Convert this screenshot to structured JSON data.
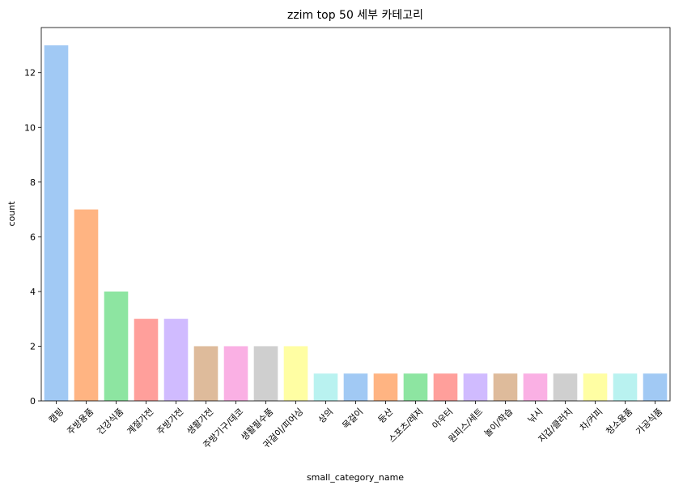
{
  "chart_data": {
    "type": "bar",
    "title": "zzim top 50 세부 카테고리",
    "xlabel": "small_category_name",
    "ylabel": "count",
    "ylim": [
      0,
      13.65
    ],
    "yticks": [
      0,
      2,
      4,
      6,
      8,
      10,
      12
    ],
    "categories": [
      "캠핑",
      "주방용품",
      "건강식품",
      "계절가전",
      "주방가전",
      "생활가전",
      "주방기구/데코",
      "생활필수품",
      "귀걸이/피어싱",
      "상의",
      "목걸이",
      "등산",
      "스포츠/레저",
      "아우터",
      "원피스/세트",
      "놀이/학습",
      "낚시",
      "지갑/클러치",
      "차/커피",
      "청소용품",
      "가공식품"
    ],
    "values": [
      13,
      7,
      4,
      3,
      3,
      2,
      2,
      2,
      2,
      1,
      1,
      1,
      1,
      1,
      1,
      1,
      1,
      1,
      1,
      1,
      1
    ],
    "colors": [
      "#a1c9f4",
      "#ffb482",
      "#8de5a1",
      "#ff9f9b",
      "#d0bbff",
      "#debb9b",
      "#fab0e4",
      "#cfcfcf",
      "#fffea3",
      "#b9f2f0"
    ],
    "grid": false,
    "legend": "none"
  }
}
